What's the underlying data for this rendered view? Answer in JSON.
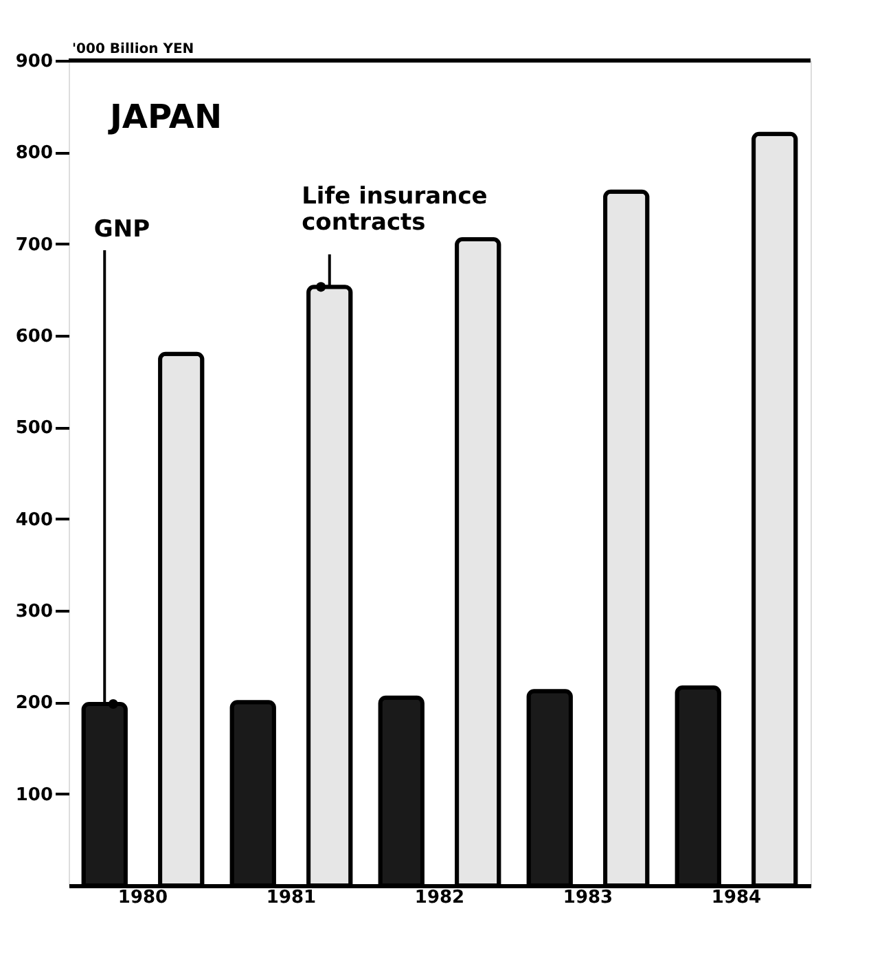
{
  "chart_data": {
    "type": "bar",
    "title": "JAPAN",
    "ylabel": "'000 Billion YEN",
    "categories": [
      "1980",
      "1981",
      "1982",
      "1983",
      "1984"
    ],
    "series": [
      {
        "name": "GNP",
        "color": "#1a1a1a",
        "values": [
          198,
          200,
          205,
          212,
          216
        ]
      },
      {
        "name": "Life insurance contracts",
        "color": "#e6e6e6",
        "values": [
          580,
          653,
          705,
          757,
          820
        ]
      }
    ],
    "ylim": [
      0,
      900
    ],
    "yticks": [
      100,
      200,
      300,
      400,
      500,
      600,
      700,
      800,
      900
    ],
    "grid": false,
    "legend": false
  }
}
